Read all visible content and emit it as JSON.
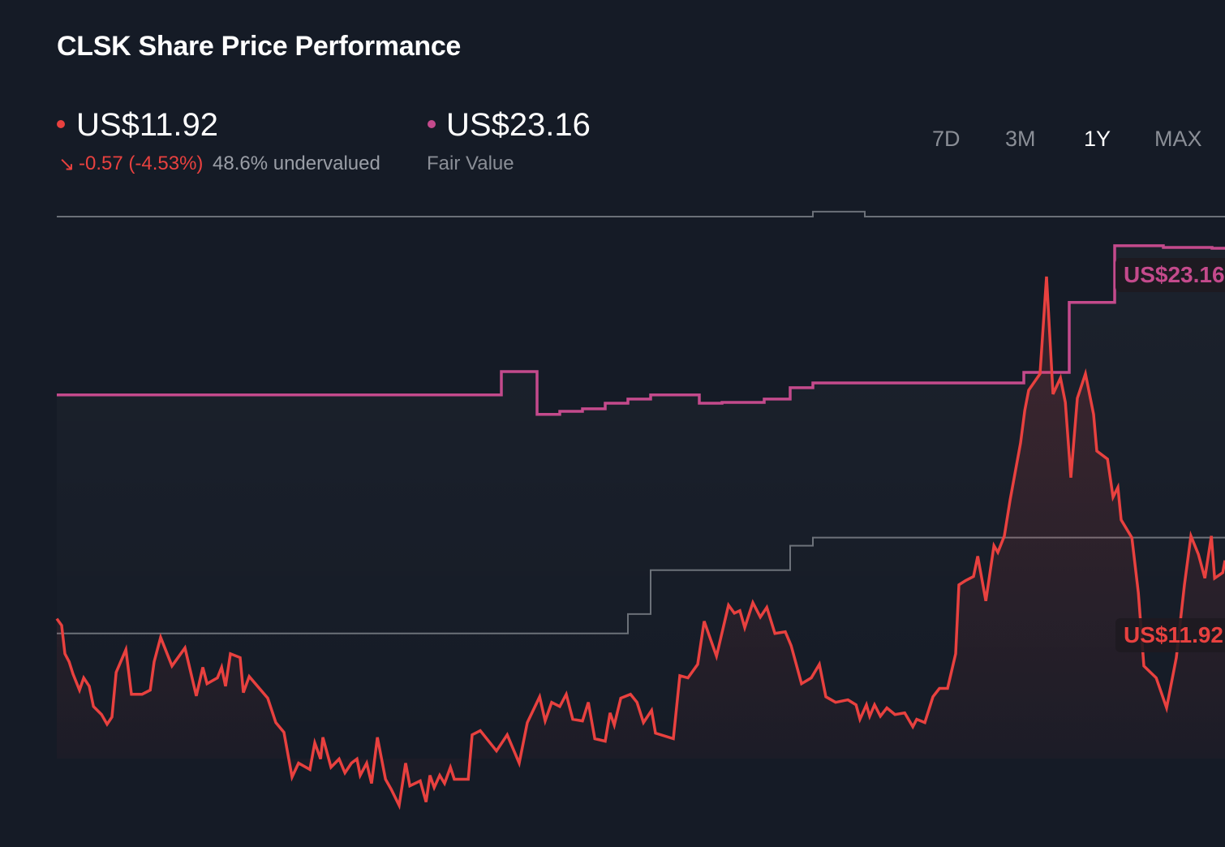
{
  "header": {
    "title": "CLSK Share Price Performance",
    "price": "US$11.92",
    "change": "-0.57 (-4.53%)",
    "valuation": "48.6% undervalued",
    "fair_value": "US$23.16",
    "fair_value_label": "Fair Value"
  },
  "timeframes": [
    {
      "label": "7D",
      "active": false
    },
    {
      "label": "3M",
      "active": false
    },
    {
      "label": "1Y",
      "active": true
    },
    {
      "label": "MAX",
      "active": false
    }
  ],
  "colors": {
    "price": "#e8413f",
    "fair_value": "#c44a8c",
    "analyst_range": "#6b7078",
    "down": "#e8413f"
  },
  "icons": {
    "change": "arrow-down-right-icon"
  },
  "chart_data": {
    "type": "line",
    "xlim": [
      0,
      360
    ],
    "ylim": [
      1.6,
      32.1
    ],
    "grid": false,
    "end_labels": {
      "price": "US$11.92",
      "fair_value": "US$23.16"
    },
    "series": [
      {
        "key": "price",
        "step": false,
        "points": [
          [
            0,
            9.82
          ],
          [
            1.5,
            9.58
          ],
          [
            2.5,
            8.56
          ],
          [
            3.8,
            8.27
          ],
          [
            5,
            7.83
          ],
          [
            7,
            7.25
          ],
          [
            8.3,
            7.69
          ],
          [
            10,
            7.39
          ],
          [
            11.3,
            6.66
          ],
          [
            13.8,
            6.37
          ],
          [
            15.5,
            6.02
          ],
          [
            17,
            6.28
          ],
          [
            18.3,
            7.89
          ],
          [
            21.3,
            8.71
          ],
          [
            23,
            7.1
          ],
          [
            26.3,
            7.1
          ],
          [
            28.8,
            7.25
          ],
          [
            30,
            8.27
          ],
          [
            32,
            9.15
          ],
          [
            35.5,
            8.12
          ],
          [
            39.5,
            8.77
          ],
          [
            43,
            7.04
          ],
          [
            45,
            8.07
          ],
          [
            46.3,
            7.48
          ],
          [
            49.5,
            7.69
          ],
          [
            50.8,
            8.07
          ],
          [
            52,
            7.39
          ],
          [
            53.5,
            8.56
          ],
          [
            56.5,
            8.42
          ],
          [
            57.5,
            7.16
          ],
          [
            59.3,
            7.74
          ],
          [
            65,
            6.96
          ],
          [
            67.5,
            6.08
          ],
          [
            70,
            5.73
          ],
          [
            72.5,
            4.12
          ],
          [
            74.5,
            4.62
          ],
          [
            78,
            4.39
          ],
          [
            79.5,
            5.35
          ],
          [
            81.3,
            4.77
          ],
          [
            82,
            5.55
          ],
          [
            84.5,
            4.47
          ],
          [
            87,
            4.77
          ],
          [
            88.8,
            4.27
          ],
          [
            90.8,
            4.62
          ],
          [
            92.5,
            4.77
          ],
          [
            93.5,
            4.18
          ],
          [
            95.5,
            4.62
          ],
          [
            97,
            3.89
          ],
          [
            98.8,
            5.55
          ],
          [
            101.3,
            4.04
          ],
          [
            103,
            3.69
          ],
          [
            105.5,
            3.1
          ],
          [
            107.5,
            4.62
          ],
          [
            108.8,
            3.8
          ],
          [
            112,
            3.98
          ],
          [
            113.8,
            3.22
          ],
          [
            115,
            4.18
          ],
          [
            116.3,
            3.74
          ],
          [
            118,
            4.18
          ],
          [
            119.5,
            3.89
          ],
          [
            121.3,
            4.47
          ],
          [
            122.5,
            4.04
          ],
          [
            126.8,
            4.04
          ],
          [
            128,
            5.64
          ],
          [
            130.5,
            5.79
          ],
          [
            135.5,
            5.06
          ],
          [
            138.8,
            5.64
          ],
          [
            142.5,
            4.62
          ],
          [
            145,
            6.08
          ],
          [
            148.8,
            7.01
          ],
          [
            150.5,
            6.14
          ],
          [
            152.5,
            6.81
          ],
          [
            155,
            6.66
          ],
          [
            157,
            7.1
          ],
          [
            159,
            6.2
          ],
          [
            162,
            6.14
          ],
          [
            163.8,
            6.81
          ],
          [
            165.8,
            5.5
          ],
          [
            169,
            5.41
          ],
          [
            170.5,
            6.43
          ],
          [
            171.8,
            5.99
          ],
          [
            173.8,
            6.96
          ],
          [
            176.8,
            7.1
          ],
          [
            178.8,
            6.81
          ],
          [
            180.8,
            6.08
          ],
          [
            183.3,
            6.52
          ],
          [
            184.5,
            5.7
          ],
          [
            190,
            5.5
          ],
          [
            192,
            7.77
          ],
          [
            194.5,
            7.69
          ],
          [
            197.5,
            8.18
          ],
          [
            199.5,
            9.73
          ],
          [
            203.3,
            8.47
          ],
          [
            207,
            10.31
          ],
          [
            208.8,
            10.02
          ],
          [
            210.5,
            10.11
          ],
          [
            212,
            9.5
          ],
          [
            214.5,
            10.4
          ],
          [
            216.8,
            9.88
          ],
          [
            218.8,
            10.23
          ],
          [
            221.3,
            9.29
          ],
          [
            224.5,
            9.35
          ],
          [
            226.3,
            8.85
          ],
          [
            229.5,
            7.48
          ],
          [
            232.5,
            7.69
          ],
          [
            235,
            8.18
          ],
          [
            237,
            7.01
          ],
          [
            240,
            6.81
          ],
          [
            243.8,
            6.9
          ],
          [
            246.3,
            6.72
          ],
          [
            247.5,
            6.2
          ],
          [
            249.5,
            6.72
          ],
          [
            250.5,
            6.31
          ],
          [
            252,
            6.72
          ],
          [
            253.8,
            6.31
          ],
          [
            255.8,
            6.61
          ],
          [
            258.3,
            6.37
          ],
          [
            261.3,
            6.43
          ],
          [
            263.8,
            5.93
          ],
          [
            265,
            6.2
          ],
          [
            267.5,
            6.08
          ],
          [
            270,
            7.01
          ],
          [
            272,
            7.31
          ],
          [
            274.5,
            7.31
          ],
          [
            277,
            8.56
          ],
          [
            278,
            11.04
          ],
          [
            280,
            11.19
          ],
          [
            282.5,
            11.34
          ],
          [
            283.8,
            12.07
          ],
          [
            286.3,
            10.46
          ],
          [
            288.8,
            12.45
          ],
          [
            290,
            12.21
          ],
          [
            292,
            12.8
          ],
          [
            293.8,
            14.11
          ],
          [
            297,
            16.15
          ],
          [
            298.3,
            17.32
          ],
          [
            299.5,
            18.05
          ],
          [
            303,
            18.64
          ],
          [
            305,
            22.14
          ],
          [
            307,
            17.91
          ],
          [
            309.3,
            18.49
          ],
          [
            310.8,
            17.61
          ],
          [
            312.5,
            14.9
          ],
          [
            314.5,
            17.76
          ],
          [
            317,
            18.64
          ],
          [
            319.5,
            17.18
          ],
          [
            320.5,
            15.86
          ],
          [
            323.8,
            15.57
          ],
          [
            325.5,
            14.2
          ],
          [
            327,
            14.55
          ],
          [
            328,
            13.38
          ],
          [
            331.3,
            12.74
          ],
          [
            333.3,
            10.75
          ],
          [
            335,
            8.12
          ],
          [
            338.8,
            7.69
          ],
          [
            342,
            6.61
          ],
          [
            345,
            8.42
          ],
          [
            347.5,
            11.04
          ],
          [
            349.5,
            12.8
          ],
          [
            351.8,
            12.14
          ],
          [
            353.8,
            11.28
          ],
          [
            355.8,
            12.8
          ],
          [
            356.8,
            11.28
          ],
          [
            359.3,
            11.48
          ],
          [
            360,
            11.92
          ]
        ]
      },
      {
        "key": "fair_value",
        "step": true,
        "points": [
          [
            0,
            17.88
          ],
          [
            137,
            18.72
          ],
          [
            148,
            17.18
          ],
          [
            155,
            17.29
          ],
          [
            162,
            17.38
          ],
          [
            169,
            17.58
          ],
          [
            176,
            17.73
          ],
          [
            183,
            17.88
          ],
          [
            198,
            17.58
          ],
          [
            205,
            17.61
          ],
          [
            218,
            17.73
          ],
          [
            226,
            18.14
          ],
          [
            233,
            18.31
          ],
          [
            298,
            18.69
          ],
          [
            312,
            21.21
          ],
          [
            326,
            23.25
          ],
          [
            341,
            23.19
          ],
          [
            356,
            23.16
          ],
          [
            360,
            23.16
          ]
        ]
      },
      {
        "key": "analyst_range",
        "step": true,
        "points": [
          [
            0,
            24.3
          ],
          [
            233,
            24.48
          ],
          [
            249,
            24.3
          ],
          [
            360,
            24.3
          ]
        ]
      },
      {
        "key": "analyst_range",
        "step": true,
        "points": [
          [
            0,
            9.29
          ],
          [
            176,
            9.99
          ],
          [
            183,
            11.57
          ],
          [
            226,
            12.45
          ],
          [
            233,
            12.74
          ],
          [
            360,
            12.74
          ]
        ]
      }
    ]
  }
}
